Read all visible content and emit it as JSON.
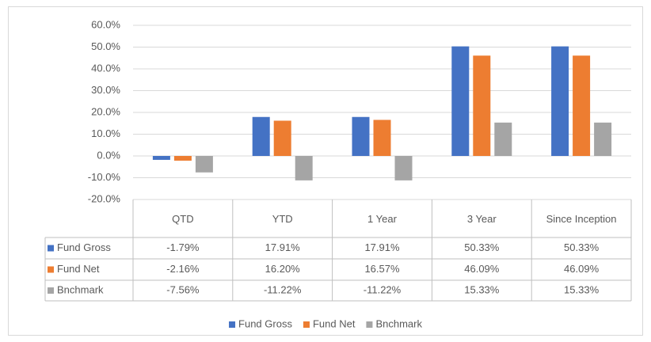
{
  "chart_data": {
    "type": "bar",
    "categories": [
      "QTD",
      "YTD",
      "1 Year",
      "3 Year",
      "Since Inception"
    ],
    "series": [
      {
        "name": "Fund Gross",
        "color": "#4472c4",
        "values": [
          -1.79,
          17.91,
          17.91,
          50.33,
          50.33
        ],
        "value_labels": [
          "-1.79%",
          "17.91%",
          "17.91%",
          "50.33%",
          "50.33%"
        ]
      },
      {
        "name": "Fund Net",
        "color": "#ed7d31",
        "values": [
          -2.16,
          16.2,
          16.57,
          46.09,
          46.09
        ],
        "value_labels": [
          "-2.16%",
          "16.20%",
          "16.57%",
          "46.09%",
          "46.09%"
        ]
      },
      {
        "name": "Bnchmark",
        "color": "#a5a5a5",
        "values": [
          -7.56,
          -11.22,
          -11.22,
          15.33,
          15.33
        ],
        "value_labels": [
          "-7.56%",
          "-11.22%",
          "-11.22%",
          "15.33%",
          "15.33%"
        ]
      }
    ],
    "ylim": [
      -20,
      60
    ],
    "yticks": [
      {
        "value": -20,
        "label": "-20.0%"
      },
      {
        "value": -10,
        "label": "-10.0%"
      },
      {
        "value": 0,
        "label": "0.0%"
      },
      {
        "value": 10,
        "label": "10.0%"
      },
      {
        "value": 20,
        "label": "20.0%"
      },
      {
        "value": 30,
        "label": "30.0%"
      },
      {
        "value": 40,
        "label": "40.0%"
      },
      {
        "value": 50,
        "label": "50.0%"
      },
      {
        "value": 60,
        "label": "60.0%"
      }
    ],
    "grid": true,
    "legend": "bottom"
  }
}
